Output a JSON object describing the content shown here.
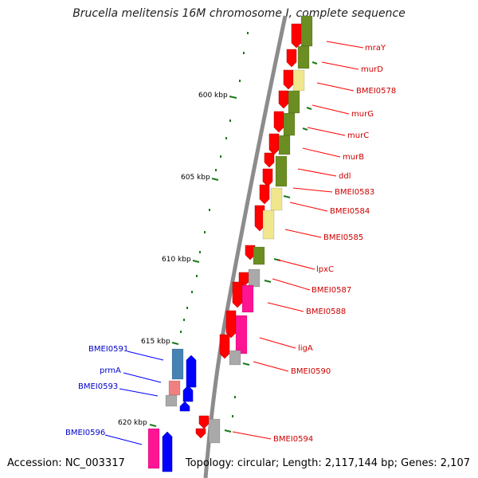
{
  "title": "Brucella melitensis 16M chromosome I, complete sequence",
  "footer": {
    "accession": "Accession: NC_003317",
    "summary": "Topology: circular; Length: 2,117,144 bp; Genes: 2,107"
  },
  "colors": {
    "backbone": "#8c8c8c",
    "tick": "#1a7a1a",
    "forward_label": "#cc0000",
    "reverse_label": "#0000cc",
    "strand_forward": "#ff0000",
    "strand_reverse": "#0000ff",
    "cog_olive": "#6b8e23",
    "cog_khaki": "#f0e68c",
    "cog_gray": "#a9a9a9",
    "cog_pink": "#ff1493",
    "cog_salmon": "#f08080",
    "cog_steelblue": "#4682b4"
  },
  "ticks": [
    "600 kbp",
    "605 kbp",
    "610 kbp",
    "615 kbp",
    "620 kbp"
  ],
  "forward_genes": [
    {
      "label": "mraY",
      "cog": "cog_olive"
    },
    {
      "label": "murD",
      "cog": "cog_olive"
    },
    {
      "label": "BMEI0578",
      "cog": "cog_khaki"
    },
    {
      "label": "murG",
      "cog": "cog_olive"
    },
    {
      "label": "murC",
      "cog": "cog_olive"
    },
    {
      "label": "murB",
      "cog": "cog_olive"
    },
    {
      "label": "ddl",
      "cog": "cog_olive"
    },
    {
      "label": "BMEI0583",
      "cog": "cog_khaki"
    },
    {
      "label": "BMEI0584",
      "cog": "cog_khaki"
    },
    {
      "label": "BMEI0585",
      "cog": "cog_khaki"
    },
    {
      "label": "lpxC",
      "cog": "cog_olive"
    },
    {
      "label": "BMEI0587",
      "cog": "cog_gray"
    },
    {
      "label": "BMEI0588",
      "cog": "cog_pink"
    },
    {
      "label": "ligA",
      "cog": "cog_pink"
    },
    {
      "label": "BMEI0590",
      "cog": "cog_gray"
    },
    {
      "label": "BMEI0594",
      "cog": "cog_gray"
    }
  ],
  "reverse_genes": [
    {
      "label": "BMEI0591",
      "cog": "cog_steelblue"
    },
    {
      "label": "prmA",
      "cog": "cog_salmon"
    },
    {
      "label": "BMEI0593",
      "cog": "cog_gray"
    },
    {
      "label": "BMEI0596",
      "cog": "cog_pink"
    }
  ]
}
